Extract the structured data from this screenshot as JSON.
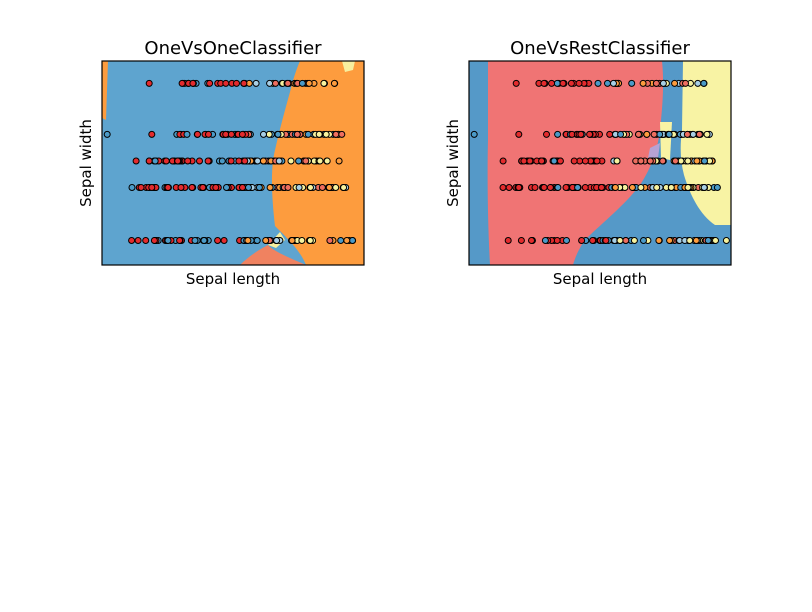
{
  "chart_data": [
    {
      "type": "scatter",
      "title": "OneVsOneClassifier",
      "xlabel": "Sepal length",
      "ylabel": "Sepal width",
      "xticks": [],
      "yticks": [],
      "ylim": [
        0,
        1
      ],
      "xlim": [
        0,
        1
      ],
      "rows_y": [
        0.12,
        0.38,
        0.51,
        0.64,
        0.89
      ],
      "regions": [
        {
          "name": "region-blue",
          "color": "#5ea4cf"
        },
        {
          "name": "region-orange",
          "color": "#fd9c3e"
        },
        {
          "name": "region-salmon",
          "color": "#f08260"
        },
        {
          "name": "region-yellow",
          "color": "#f7ef9f"
        }
      ],
      "point_colors": [
        "#e32b2d",
        "#ee6e5f",
        "#4b9ac7",
        "#a8cfe5",
        "#f7f39f",
        "#fd9c3e",
        "#3aa04a",
        "#a08ac8"
      ]
    },
    {
      "type": "scatter",
      "title": "OneVsRestClassifier",
      "xlabel": "Sepal length",
      "ylabel": "Sepal width",
      "xticks": [],
      "yticks": [],
      "ylim": [
        0,
        1
      ],
      "xlim": [
        0,
        1
      ],
      "rows_y": [
        0.12,
        0.38,
        0.51,
        0.64,
        0.89
      ],
      "regions": [
        {
          "name": "region-blue",
          "color": "#5599c8"
        },
        {
          "name": "region-salmon",
          "color": "#f07474"
        },
        {
          "name": "region-yellow",
          "color": "#f8f3a4"
        },
        {
          "name": "region-purple",
          "color": "#b6a2d4"
        }
      ],
      "point_colors": [
        "#e32b2d",
        "#ee6e5f",
        "#4b9ac7",
        "#a8cfe5",
        "#f7f39f",
        "#fd9c3e",
        "#3aa04a",
        "#a08ac8"
      ]
    }
  ]
}
